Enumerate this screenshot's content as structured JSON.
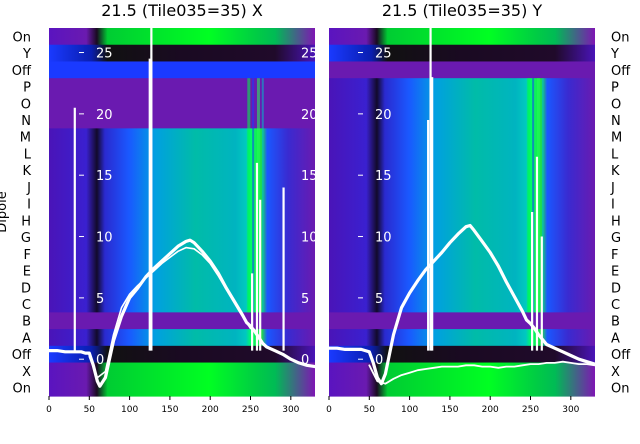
{
  "chart_data": [
    {
      "type": "heatmap",
      "title": "21.5 (Tile035=35) X",
      "ylabel": "Dipole",
      "row_labels": [
        "On",
        "Y",
        "Off",
        "P",
        "O",
        "N",
        "M",
        "L",
        "K",
        "J",
        "I",
        "H",
        "G",
        "F",
        "E",
        "D",
        "C",
        "B",
        "A",
        "Off",
        "X",
        "On"
      ],
      "xlim": [
        0,
        330
      ],
      "x_ticks": [
        0,
        50,
        100,
        150,
        200,
        250,
        300
      ],
      "overlay_y_ticks": [
        25,
        20,
        15,
        10,
        5,
        0
      ],
      "overlay_ylim": [
        -3,
        27
      ],
      "overlay_series": [
        {
          "role": "primary",
          "x": [
            0,
            10,
            20,
            30,
            40,
            45,
            50,
            55,
            60,
            63,
            70,
            80,
            90,
            100,
            110,
            120,
            130,
            140,
            150,
            160,
            170,
            175,
            180,
            190,
            200,
            210,
            220,
            230,
            240,
            245,
            250,
            255,
            260,
            265,
            270,
            280,
            290,
            300,
            310,
            320,
            330
          ],
          "y": [
            0.7,
            0.7,
            0.6,
            0.6,
            0.6,
            0.5,
            0.5,
            -0.5,
            -1.8,
            -2.2,
            -1.5,
            1.5,
            3.5,
            5.0,
            5.8,
            6.7,
            7.4,
            8.0,
            8.6,
            9.2,
            9.6,
            9.7,
            9.5,
            8.8,
            8.0,
            7.0,
            5.8,
            4.7,
            3.6,
            3.0,
            2.7,
            2.3,
            1.8,
            1.3,
            1.0,
            0.7,
            0.4,
            0.0,
            -0.3,
            -0.5,
            -0.6
          ]
        },
        {
          "role": "secondary",
          "x": [
            50,
            60,
            70,
            80,
            90,
            100,
            110,
            120,
            130,
            140,
            150,
            160,
            170,
            180,
            190,
            200,
            210,
            220,
            230,
            240,
            250
          ],
          "y": [
            0.2,
            -1.5,
            -1.0,
            2.0,
            4.2,
            5.3,
            6.0,
            6.6,
            7.2,
            7.8,
            8.3,
            8.8,
            9.1,
            9.0,
            8.5,
            7.8,
            6.8,
            5.7,
            4.6,
            3.5,
            2.5
          ]
        },
        {
          "role": "spikes",
          "x": [
            32,
            125,
            127,
            252,
            258,
            262,
            291
          ],
          "y": [
            20.5,
            24.5,
            27.0,
            7.0,
            16.0,
            13.0,
            14.0
          ]
        }
      ]
    },
    {
      "type": "heatmap",
      "title": "21.5 (Tile035=35) Y",
      "ylabel": "",
      "row_labels": [
        "On",
        "Y",
        "Off",
        "P",
        "O",
        "N",
        "M",
        "L",
        "K",
        "J",
        "I",
        "H",
        "G",
        "F",
        "E",
        "D",
        "C",
        "B",
        "A",
        "Off",
        "X",
        "On"
      ],
      "xlim": [
        0,
        330
      ],
      "x_ticks": [
        0,
        50,
        100,
        150,
        200,
        250,
        300
      ],
      "overlay_y_ticks": [
        25,
        20,
        15,
        10,
        5,
        0
      ],
      "overlay_ylim": [
        -3,
        27
      ],
      "overlay_series": [
        {
          "role": "primary",
          "x": [
            0,
            10,
            20,
            30,
            40,
            45,
            50,
            55,
            60,
            65,
            70,
            80,
            90,
            100,
            110,
            120,
            130,
            140,
            150,
            160,
            170,
            175,
            180,
            190,
            200,
            210,
            220,
            230,
            240,
            245,
            250,
            255,
            260,
            265,
            270,
            280,
            290,
            300,
            310,
            320,
            330
          ],
          "y": [
            0.9,
            0.9,
            0.8,
            0.8,
            0.8,
            0.7,
            0.6,
            -0.3,
            -1.5,
            -2.0,
            -1.2,
            2.0,
            4.2,
            5.4,
            6.4,
            7.3,
            8.0,
            8.7,
            9.5,
            10.2,
            10.8,
            10.9,
            10.5,
            9.6,
            8.7,
            7.6,
            6.3,
            5.1,
            3.9,
            3.2,
            2.9,
            2.5,
            2.0,
            1.6,
            1.2,
            0.9,
            0.6,
            0.3,
            0.0,
            -0.2,
            -0.4
          ]
        },
        {
          "role": "baseline",
          "x": [
            50,
            60,
            70,
            80,
            90,
            100,
            110,
            120,
            130,
            140,
            150,
            160,
            170,
            180,
            190,
            200,
            210,
            220,
            230,
            240,
            250,
            260,
            270,
            280,
            290,
            300,
            310,
            320,
            330
          ],
          "y": [
            -0.5,
            -1.8,
            -2.0,
            -1.6,
            -1.3,
            -1.1,
            -0.9,
            -0.8,
            -0.7,
            -0.6,
            -0.6,
            -0.6,
            -0.5,
            -0.5,
            -0.6,
            -0.6,
            -0.7,
            -0.6,
            -0.6,
            -0.5,
            -0.4,
            -0.4,
            -0.3,
            -0.3,
            -0.2,
            -0.3,
            -0.4,
            -0.4,
            -0.5
          ]
        },
        {
          "role": "spikes",
          "x": [
            123,
            126,
            128,
            252,
            258,
            264
          ],
          "y": [
            19.5,
            27.0,
            23.0,
            12.0,
            16.5,
            10.0
          ]
        }
      ]
    }
  ]
}
